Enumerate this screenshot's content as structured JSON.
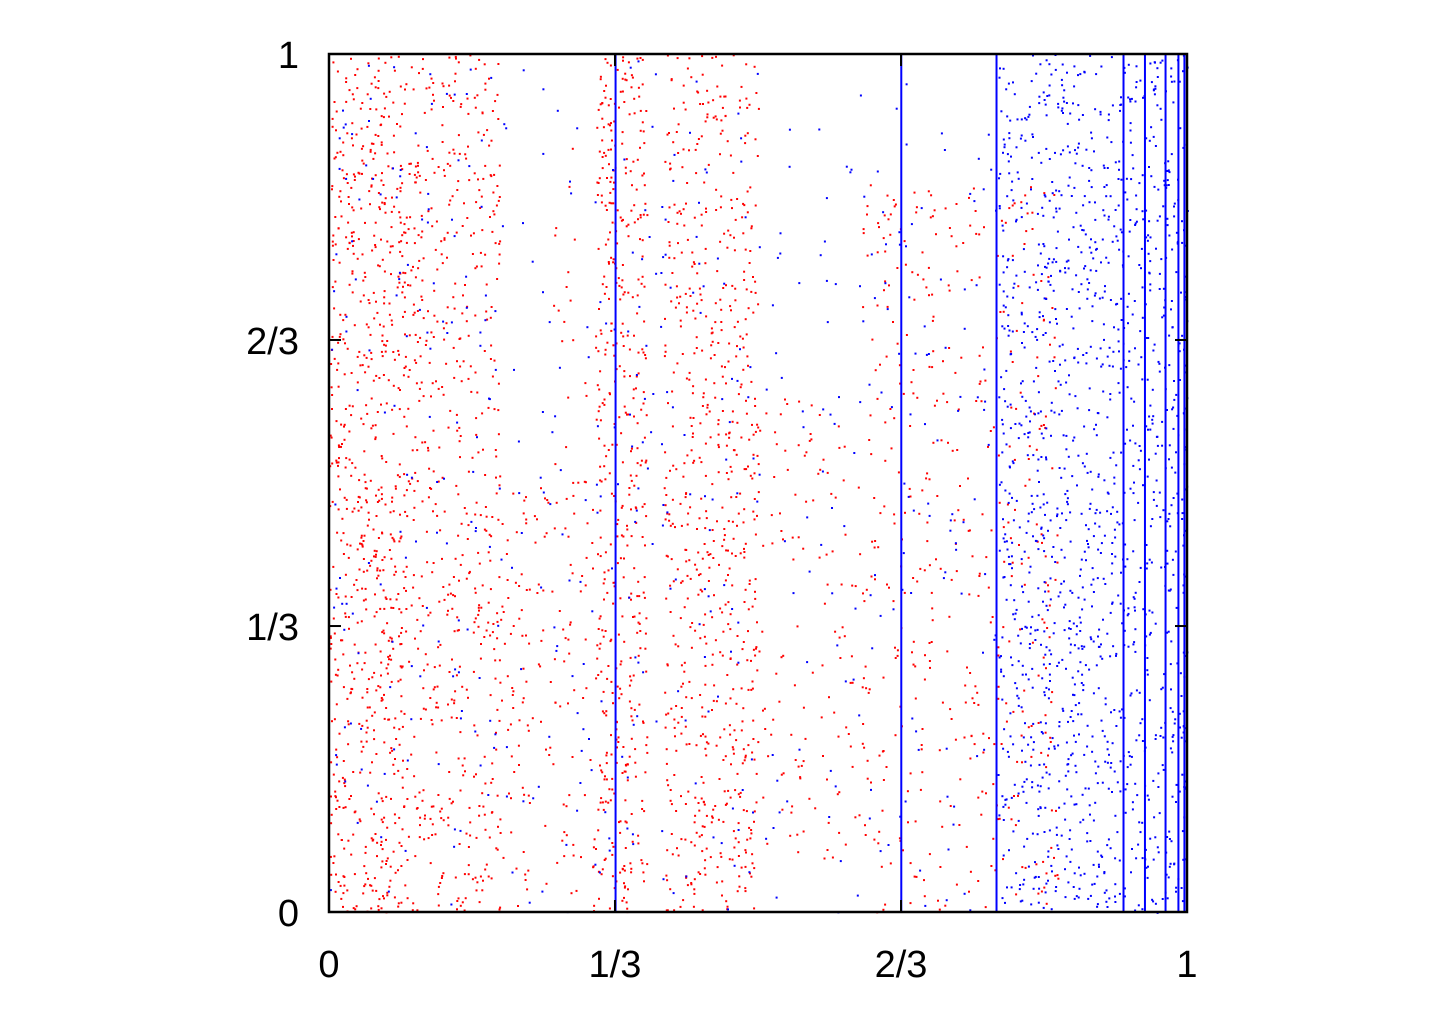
{
  "chart_data": {
    "type": "scatter",
    "title": "",
    "xlabel": "",
    "ylabel": "",
    "xlim": [
      0,
      1
    ],
    "ylim": [
      0,
      1
    ],
    "grid": false,
    "legend": "none",
    "x_ticks": [
      {
        "value": 0,
        "label": "0"
      },
      {
        "value": 0.3333,
        "label": "1/3"
      },
      {
        "value": 0.6667,
        "label": "2/3"
      },
      {
        "value": 1,
        "label": "1"
      }
    ],
    "y_ticks": [
      {
        "value": 0,
        "label": "0"
      },
      {
        "value": 0.3333,
        "label": "1/3"
      },
      {
        "value": 0.6667,
        "label": "2/3"
      },
      {
        "value": 1,
        "label": "1"
      }
    ],
    "series": [
      {
        "color": "#ff0000",
        "marker": "small-dot",
        "description_regions": [
          {
            "x": [
              0.0,
              0.09
            ],
            "y": [
              0.0,
              1.0
            ],
            "density": 0.9
          },
          {
            "x": [
              0.09,
              0.2
            ],
            "y": [
              0.0,
              1.0
            ],
            "density": 0.55
          },
          {
            "x": [
              0.2,
              0.23
            ],
            "y": [
              0.0,
              0.5
            ],
            "density": 0.4
          },
          {
            "x": [
              0.23,
              0.31
            ],
            "y": [
              0.0,
              0.5
            ],
            "density": 0.25
          },
          {
            "x": [
              0.26,
              0.3
            ],
            "y": [
              0.5,
              0.9
            ],
            "density": 0.15
          },
          {
            "x": [
              0.31,
              0.37
            ],
            "y": [
              0.0,
              1.0
            ],
            "density": 0.85
          },
          {
            "x": [
              0.39,
              0.5
            ],
            "y": [
              0.0,
              1.0
            ],
            "density": 0.6
          },
          {
            "x": [
              0.43,
              0.62
            ],
            "y": [
              0.05,
              0.6
            ],
            "density": 0.2
          },
          {
            "x": [
              0.62,
              0.85
            ],
            "y": [
              0.0,
              0.85
            ],
            "density": 0.25
          }
        ]
      },
      {
        "color": "#0000ff",
        "marker": "small-dot",
        "vertical_lines_x": [
          0.334,
          0.667,
          0.778,
          0.926,
          0.951,
          0.975,
          0.99,
          0.997
        ]
      }
    ]
  }
}
